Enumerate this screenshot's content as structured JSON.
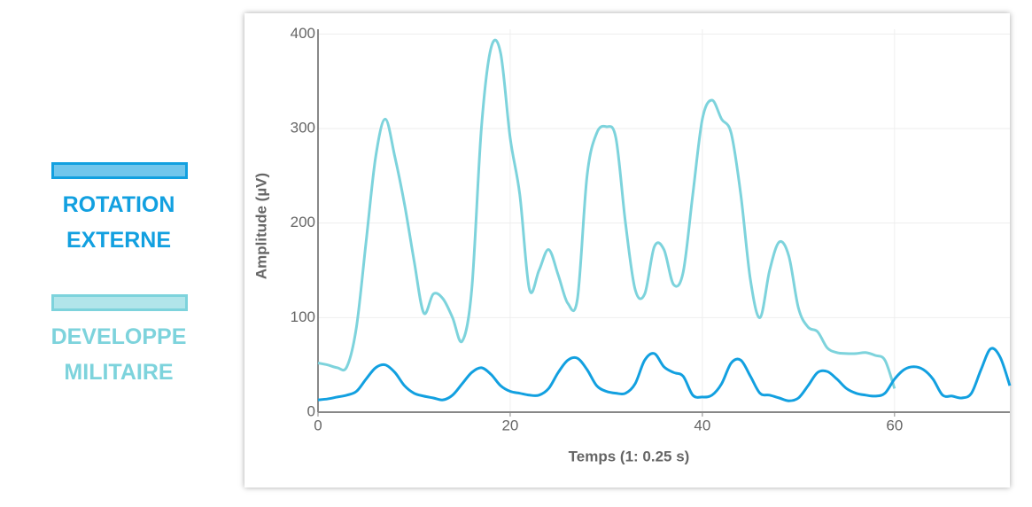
{
  "chart_data": {
    "type": "line",
    "x_label": "Temps (1: 0.25 s)",
    "y_label": "Amplitude (µV)",
    "x": [
      0,
      1,
      2,
      3,
      4,
      5,
      6,
      7,
      8,
      9,
      10,
      11,
      12,
      13,
      14,
      15,
      16,
      17,
      18,
      19,
      20,
      21,
      22,
      23,
      24,
      25,
      26,
      27,
      28,
      29,
      30,
      31,
      32,
      33,
      34,
      35,
      36,
      37,
      38,
      39,
      40,
      41,
      42,
      43,
      44,
      45,
      46,
      47,
      48,
      49,
      50,
      51,
      52,
      53,
      54,
      55,
      56,
      57,
      58,
      59,
      60,
      61,
      62,
      63,
      64,
      65,
      66,
      67,
      68,
      69,
      70,
      71,
      72
    ],
    "series": [
      {
        "name": "ROTATION EXTERNE",
        "color": "#12a0e0",
        "values": [
          13,
          14,
          16,
          18,
          22,
          35,
          47,
          50,
          42,
          28,
          20,
          17,
          15,
          13,
          18,
          30,
          42,
          47,
          40,
          28,
          22,
          20,
          18,
          18,
          25,
          42,
          55,
          57,
          45,
          28,
          22,
          20,
          20,
          30,
          55,
          62,
          48,
          42,
          38,
          18,
          16,
          18,
          30,
          52,
          55,
          38,
          20,
          18,
          15,
          12,
          15,
          28,
          42,
          43,
          35,
          25,
          20,
          18,
          17,
          20,
          35,
          45,
          48,
          45,
          35,
          18,
          17,
          15,
          20,
          45,
          67,
          58,
          28
        ]
      },
      {
        "name": "DEVELOPPE MILITAIRE",
        "color": "#7dd3dc",
        "values": [
          52,
          50,
          47,
          48,
          90,
          180,
          270,
          310,
          270,
          220,
          160,
          105,
          125,
          120,
          100,
          75,
          130,
          300,
          385,
          380,
          290,
          230,
          130,
          150,
          172,
          145,
          115,
          120,
          250,
          295,
          302,
          290,
          200,
          130,
          125,
          175,
          172,
          135,
          148,
          230,
          310,
          330,
          310,
          295,
          230,
          140,
          100,
          150,
          180,
          165,
          110,
          90,
          85,
          68,
          63,
          62,
          62,
          63,
          60,
          55,
          25,
          null,
          null,
          null,
          null,
          null,
          null,
          null,
          null,
          null,
          null,
          null,
          null
        ]
      }
    ],
    "xlim": [
      0,
      72
    ],
    "ylim": [
      0,
      405
    ],
    "xticks": [
      0,
      20,
      40,
      60
    ],
    "yticks": [
      0,
      100,
      200,
      300,
      400
    ],
    "grid": true
  }
}
